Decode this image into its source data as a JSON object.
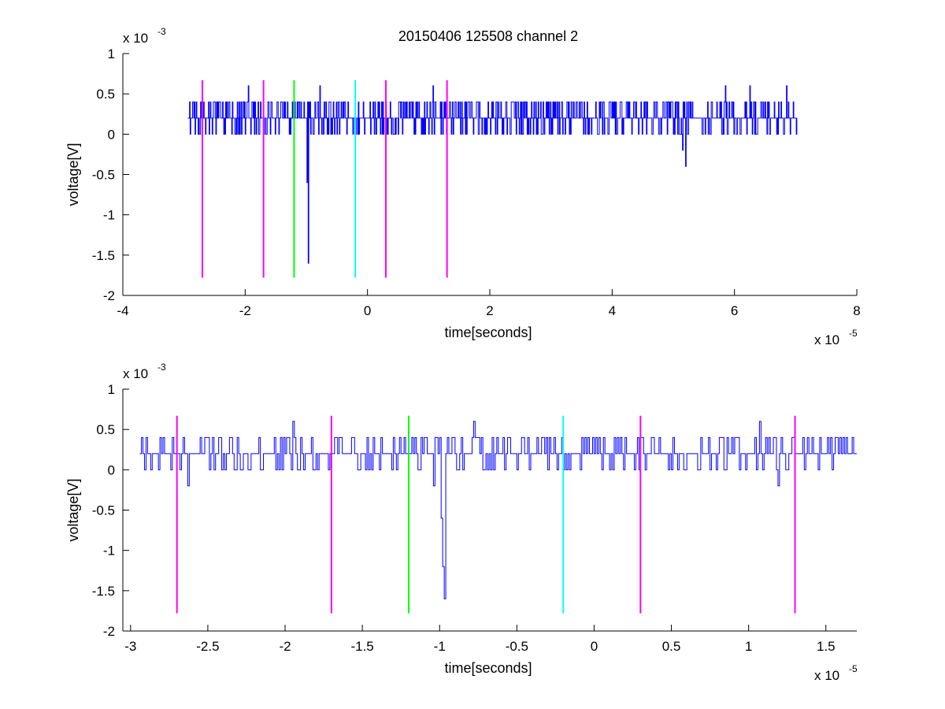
{
  "title": "20150406 125508 channel 2",
  "chart_data": [
    {
      "type": "line",
      "title": "20150406 125508 channel 2",
      "xlabel": "time[seconds]",
      "ylabel": "voltage[V]",
      "x_exponent_label": "x 10",
      "x_exponent": "-5",
      "y_exponent_label": "x 10",
      "y_exponent": "-3",
      "xlim": [
        -4e-05,
        8e-05
      ],
      "ylim": [
        -0.002,
        0.001
      ],
      "x_ticks": [
        -4e-05,
        -2e-05,
        0,
        2e-05,
        4e-05,
        6e-05,
        8e-05
      ],
      "x_tick_labels": [
        "-4",
        "-2",
        "0",
        "2",
        "4",
        "6",
        "8"
      ],
      "y_ticks": [
        0.001,
        0.0005,
        0,
        -0.0005,
        -0.001,
        -0.0015,
        -0.002
      ],
      "y_tick_labels": [
        "1",
        "0.5",
        "0",
        "-0.5",
        "-1",
        "-1.5",
        "-2"
      ],
      "grid": false,
      "signal": {
        "color": "#0000ff",
        "x_start": -2.94e-05,
        "x_end": 7.02e-05,
        "sample_step": 1e-07,
        "baseline": 0.0002,
        "levels": [
          0,
          0.0002,
          0.0004
        ],
        "spikes": [
          {
            "x": -9.7e-06,
            "y": -0.0016
          },
          {
            "x": -9.9e-06,
            "y": -0.0006
          },
          {
            "x": 5.2e-05,
            "y": -0.0004
          },
          {
            "x": 5.15e-05,
            "y": -0.0002
          },
          {
            "x": 1.07e-05,
            "y": 0.0006
          },
          {
            "x": -7.8e-06,
            "y": 0.0006
          },
          {
            "x": -1.95e-05,
            "y": 0.0006
          },
          {
            "x": 5.85e-05,
            "y": 0.0006
          },
          {
            "x": 6.25e-05,
            "y": 0.0006
          },
          {
            "x": 6.85e-05,
            "y": 0.0006
          }
        ]
      },
      "markers": [
        {
          "x": -2.7e-05,
          "color": "#ff00ff"
        },
        {
          "x": -1.7e-05,
          "color": "#ff00ff"
        },
        {
          "x": -1.2e-05,
          "color": "#00ff00"
        },
        {
          "x": -2e-06,
          "color": "#00ffff"
        },
        {
          "x": 3e-06,
          "color": "#ff00ff"
        },
        {
          "x": 1.3e-05,
          "color": "#ff00ff"
        }
      ],
      "marker_range": [
        -0.00178,
        0.00067
      ]
    },
    {
      "type": "line",
      "xlabel": "time[seconds]",
      "ylabel": "voltage[V]",
      "x_exponent_label": "x 10",
      "x_exponent": "-5",
      "y_exponent_label": "x 10",
      "y_exponent": "-3",
      "xlim": [
        -3.05e-05,
        1.7e-05
      ],
      "ylim": [
        -0.002,
        0.001
      ],
      "x_ticks": [
        -3e-05,
        -2.5e-05,
        -2e-05,
        -1.5e-05,
        -1e-05,
        -5e-06,
        0,
        5e-06,
        1e-05,
        1.5e-05
      ],
      "x_tick_labels": [
        "-3",
        "-2.5",
        "-2",
        "-1.5",
        "-1",
        "-0.5",
        "0",
        "0.5",
        "1",
        "1.5"
      ],
      "y_ticks": [
        0.001,
        0.0005,
        0,
        -0.0005,
        -0.001,
        -0.0015,
        -0.002
      ],
      "y_tick_labels": [
        "1",
        "0.5",
        "0",
        "-0.5",
        "-1",
        "-1.5",
        "-2"
      ],
      "grid": false,
      "signal": {
        "color": "#0000ff",
        "x_start": -2.94e-05,
        "x_end": 1.7e-05,
        "sample_step": 1e-07,
        "baseline": 0.0002,
        "levels": [
          0,
          0.0002,
          0.0004
        ],
        "spikes": [
          {
            "x": -9.7e-06,
            "y": -0.0016
          },
          {
            "x": -9.8e-06,
            "y": -0.0012
          },
          {
            "x": -9.9e-06,
            "y": -0.0006
          },
          {
            "x": -1.04e-05,
            "y": -0.0002
          },
          {
            "x": 1.07e-05,
            "y": 0.0006
          },
          {
            "x": -7.8e-06,
            "y": 0.0006
          },
          {
            "x": -1.95e-05,
            "y": 0.0006
          },
          {
            "x": 1.19e-05,
            "y": -0.0002
          },
          {
            "x": -2.63e-05,
            "y": -0.0002
          }
        ]
      },
      "markers": [
        {
          "x": -2.7e-05,
          "color": "#ff00ff"
        },
        {
          "x": -1.7e-05,
          "color": "#ff00ff"
        },
        {
          "x": -1.2e-05,
          "color": "#00ff00"
        },
        {
          "x": -2e-06,
          "color": "#00ffff"
        },
        {
          "x": 3e-06,
          "color": "#ff00ff"
        },
        {
          "x": 1.3e-05,
          "color": "#ff00ff"
        }
      ],
      "marker_range": [
        -0.00178,
        0.00067
      ]
    }
  ]
}
